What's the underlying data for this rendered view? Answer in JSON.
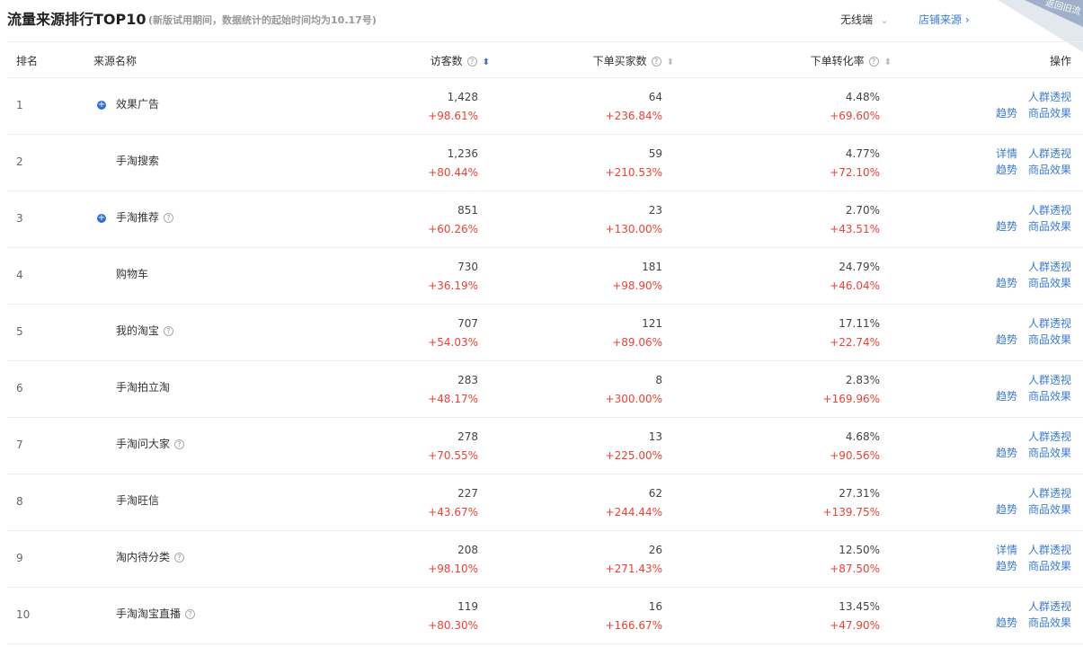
{
  "header": {
    "title": "流量来源排行TOP10",
    "note": "(新版试用期间，数据统计的起始时间均为10.17号)",
    "device": "无线端",
    "shop_link": "店铺来源",
    "corner": "返回旧流"
  },
  "change_color": "#f04134",
  "table": {
    "columns": [
      "排名",
      "来源名称",
      "访客数",
      "下单买家数",
      "下单转化率",
      "操作"
    ],
    "rows": [
      {
        "rank": "1",
        "name": "效果广告",
        "expand": true,
        "help": false,
        "visitors": "1,428",
        "visitors_change": "+98.61%",
        "buyers": "64",
        "buyers_change": "+236.84%",
        "rate": "4.48%",
        "rate_change": "+69.60%",
        "actions": [
          [
            "人群透视"
          ],
          [
            "趋势",
            "商品效果"
          ]
        ]
      },
      {
        "rank": "2",
        "name": "手淘搜索",
        "expand": false,
        "help": false,
        "visitors": "1,236",
        "visitors_change": "+80.44%",
        "buyers": "59",
        "buyers_change": "+210.53%",
        "rate": "4.77%",
        "rate_change": "+72.10%",
        "actions": [
          [
            "详情",
            "人群透视"
          ],
          [
            "趋势",
            "商品效果"
          ]
        ]
      },
      {
        "rank": "3",
        "name": "手淘推荐",
        "expand": true,
        "help": true,
        "visitors": "851",
        "visitors_change": "+60.26%",
        "buyers": "23",
        "buyers_change": "+130.00%",
        "rate": "2.70%",
        "rate_change": "+43.51%",
        "actions": [
          [
            "人群透视"
          ],
          [
            "趋势",
            "商品效果"
          ]
        ]
      },
      {
        "rank": "4",
        "name": "购物车",
        "expand": false,
        "help": false,
        "visitors": "730",
        "visitors_change": "+36.19%",
        "buyers": "181",
        "buyers_change": "+98.90%",
        "rate": "24.79%",
        "rate_change": "+46.04%",
        "actions": [
          [
            "人群透视"
          ],
          [
            "趋势",
            "商品效果"
          ]
        ]
      },
      {
        "rank": "5",
        "name": "我的淘宝",
        "expand": false,
        "help": true,
        "visitors": "707",
        "visitors_change": "+54.03%",
        "buyers": "121",
        "buyers_change": "+89.06%",
        "rate": "17.11%",
        "rate_change": "+22.74%",
        "actions": [
          [
            "人群透视"
          ],
          [
            "趋势",
            "商品效果"
          ]
        ]
      },
      {
        "rank": "6",
        "name": "手淘拍立淘",
        "expand": false,
        "help": false,
        "visitors": "283",
        "visitors_change": "+48.17%",
        "buyers": "8",
        "buyers_change": "+300.00%",
        "rate": "2.83%",
        "rate_change": "+169.96%",
        "actions": [
          [
            "人群透视"
          ],
          [
            "趋势",
            "商品效果"
          ]
        ]
      },
      {
        "rank": "7",
        "name": "手淘问大家",
        "expand": false,
        "help": true,
        "visitors": "278",
        "visitors_change": "+70.55%",
        "buyers": "13",
        "buyers_change": "+225.00%",
        "rate": "4.68%",
        "rate_change": "+90.56%",
        "actions": [
          [
            "人群透视"
          ],
          [
            "趋势",
            "商品效果"
          ]
        ]
      },
      {
        "rank": "8",
        "name": "手淘旺信",
        "expand": false,
        "help": false,
        "visitors": "227",
        "visitors_change": "+43.67%",
        "buyers": "62",
        "buyers_change": "+244.44%",
        "rate": "27.31%",
        "rate_change": "+139.75%",
        "actions": [
          [
            "人群透视"
          ],
          [
            "趋势",
            "商品效果"
          ]
        ]
      },
      {
        "rank": "9",
        "name": "淘内待分类",
        "expand": false,
        "help": true,
        "visitors": "208",
        "visitors_change": "+98.10%",
        "buyers": "26",
        "buyers_change": "+271.43%",
        "rate": "12.50%",
        "rate_change": "+87.50%",
        "actions": [
          [
            "详情",
            "人群透视"
          ],
          [
            "趋势",
            "商品效果"
          ]
        ]
      },
      {
        "rank": "10",
        "name": "手淘淘宝直播",
        "expand": false,
        "help": true,
        "visitors": "119",
        "visitors_change": "+80.30%",
        "buyers": "16",
        "buyers_change": "+166.67%",
        "rate": "13.45%",
        "rate_change": "+47.90%",
        "actions": [
          [
            "人群透视"
          ],
          [
            "趋势",
            "商品效果"
          ]
        ]
      }
    ]
  }
}
